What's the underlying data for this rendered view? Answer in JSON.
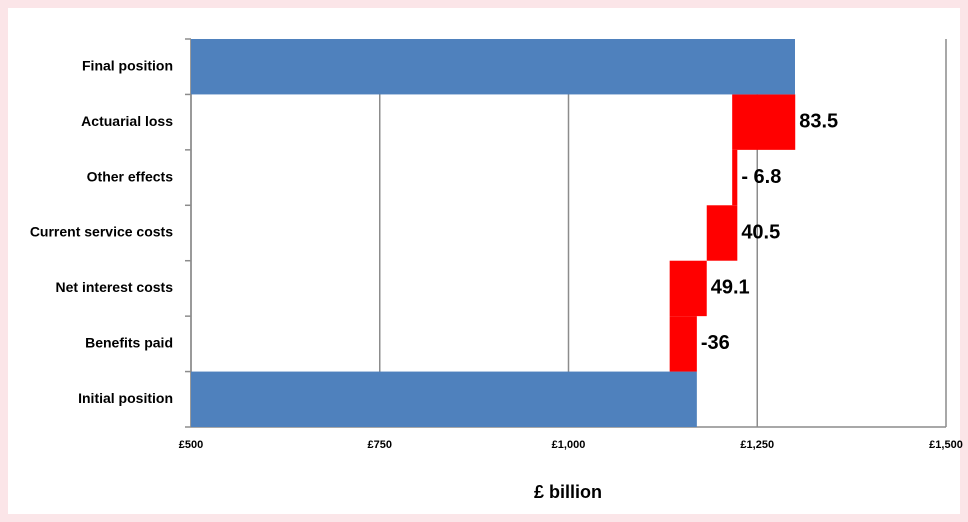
{
  "chart_data": {
    "type": "waterfall",
    "categories": [
      "Initial position",
      "Benefits paid",
      "Net interest costs",
      "Current service costs",
      "Other effects",
      "Actuarial loss",
      "Final position"
    ],
    "values": [
      1170,
      -36,
      49.1,
      40.5,
      -6.8,
      83.5,
      1300
    ],
    "value_labels": [
      null,
      "-36",
      "49.1",
      "40.5",
      "- 6.8",
      "83.5",
      null
    ],
    "total_color": "#4f81bd",
    "change_color": "#ff0000",
    "xlabel": "£ billion",
    "xlim": [
      500,
      1500
    ],
    "xticks": [
      {
        "value": 500,
        "label": "£500"
      },
      {
        "value": 750,
        "label": "£750"
      },
      {
        "value": 1000,
        "label": "£1,000"
      },
      {
        "value": 1250,
        "label": "£1,250"
      },
      {
        "value": 1500,
        "label": "£1,500"
      }
    ],
    "grid": true
  }
}
